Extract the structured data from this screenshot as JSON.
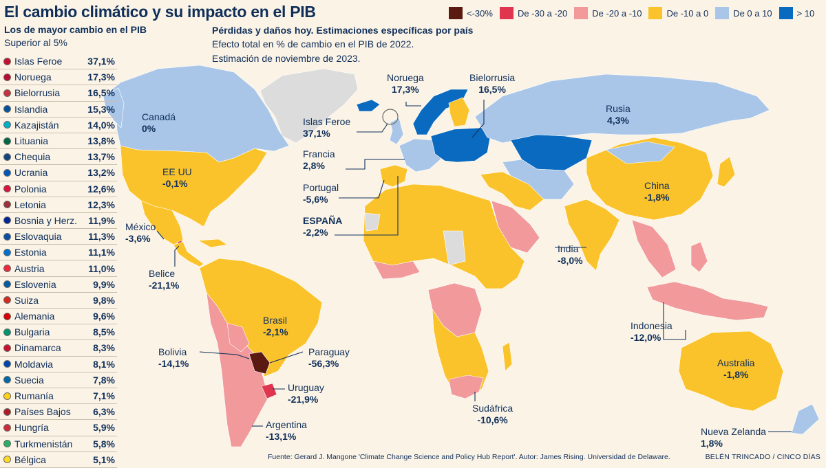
{
  "title": "El cambio climático y su impacto en el PIB",
  "ranking": {
    "title": "Los de mayor cambio en el PIB",
    "subtitle": "Superior al 5%",
    "items": [
      {
        "name": "Islas Feroe",
        "value": "37,1%",
        "flag": "#c8102e"
      },
      {
        "name": "Noruega",
        "value": "17,3%",
        "flag": "#ba0c2f"
      },
      {
        "name": "Bielorrusia",
        "value": "16,5%",
        "flag": "#c8313e"
      },
      {
        "name": "Islandia",
        "value": "15,3%",
        "flag": "#02529c"
      },
      {
        "name": "Kazajistán",
        "value": "14,0%",
        "flag": "#00afca"
      },
      {
        "name": "Lituania",
        "value": "13,8%",
        "flag": "#006a44"
      },
      {
        "name": "Chequia",
        "value": "13,7%",
        "flag": "#11457e"
      },
      {
        "name": "Ucrania",
        "value": "13,2%",
        "flag": "#0057b7"
      },
      {
        "name": "Polonia",
        "value": "12,6%",
        "flag": "#dc143c"
      },
      {
        "name": "Letonia",
        "value": "12,3%",
        "flag": "#9e3039"
      },
      {
        "name": "Bosnia y Herz.",
        "value": "11,9%",
        "flag": "#002395"
      },
      {
        "name": "Eslovaquia",
        "value": "11,3%",
        "flag": "#0b4ea2"
      },
      {
        "name": "Estonia",
        "value": "11,1%",
        "flag": "#0072ce"
      },
      {
        "name": "Austria",
        "value": "11,0%",
        "flag": "#ed2939"
      },
      {
        "name": "Eslovenia",
        "value": "9,9%",
        "flag": "#005da4"
      },
      {
        "name": "Suiza",
        "value": "9,8%",
        "flag": "#d52b1e"
      },
      {
        "name": "Alemania",
        "value": "9,6%",
        "flag": "#dd0000"
      },
      {
        "name": "Bulgaria",
        "value": "8,5%",
        "flag": "#00966e"
      },
      {
        "name": "Dinamarca",
        "value": "8,3%",
        "flag": "#c8102e"
      },
      {
        "name": "Moldavia",
        "value": "8,1%",
        "flag": "#0046ae"
      },
      {
        "name": "Suecia",
        "value": "7,8%",
        "flag": "#006aa7"
      },
      {
        "name": "Rumanía",
        "value": "7,1%",
        "flag": "#fcd116"
      },
      {
        "name": "Países Bajos",
        "value": "6,3%",
        "flag": "#ae1c28"
      },
      {
        "name": "Hungría",
        "value": "5,9%",
        "flag": "#ce2939"
      },
      {
        "name": "Turkmenistán",
        "value": "5,8%",
        "flag": "#28ae66"
      },
      {
        "name": "Bélgica",
        "value": "5,1%",
        "flag": "#fdda24"
      }
    ]
  },
  "subtitle": {
    "title": "Pérdidas y daños hoy. Estimaciones específicas por país",
    "line1": "Efecto total en % de cambio en el PIB de 2022.",
    "line2": "Estimación de noviembre de 2023."
  },
  "legend": [
    {
      "label": "<-30%",
      "color": "#5a1a12"
    },
    {
      "label": "De -30 a -20",
      "color": "#e0354e"
    },
    {
      "label": "De -20 a -10",
      "color": "#f1999b"
    },
    {
      "label": "De -10 a 0",
      "color": "#fbc32b"
    },
    {
      "label": "De 0 a 10",
      "color": "#a9c6e8"
    },
    {
      "label": "> 10",
      "color": "#0a6abf"
    }
  ],
  "colors": {
    "ocean": "#fbf3e6",
    "nodata": "#dcdcdc",
    "text": "#0f2f5a"
  },
  "labels": {
    "canada": {
      "name": "Canadá",
      "value": "0%"
    },
    "eeuu": {
      "name": "EE UU",
      "value": "-0,1%"
    },
    "mexico": {
      "name": "México",
      "value": "-3,6%"
    },
    "belice": {
      "name": "Belice",
      "value": "-21,1%"
    },
    "brasil": {
      "name": "Brasil",
      "value": "-2,1%"
    },
    "bolivia": {
      "name": "Bolivia",
      "value": "-14,1%"
    },
    "paraguay": {
      "name": "Paraguay",
      "value": "-56,3%"
    },
    "uruguay": {
      "name": "Uruguay",
      "value": "-21,9%"
    },
    "argentina": {
      "name": "Argentina",
      "value": "-13,1%"
    },
    "islasferoe": {
      "name": "Islas Feroe",
      "value": "37,1%"
    },
    "francia": {
      "name": "Francia",
      "value": "2,8%"
    },
    "portugal": {
      "name": "Portugal",
      "value": "-5,6%"
    },
    "espana": {
      "name": "ESPAÑA",
      "value": "-2,2%"
    },
    "noruega": {
      "name": "Noruega",
      "value": "17,3%"
    },
    "bielorrusia": {
      "name": "Bielorrusia",
      "value": "16,5%"
    },
    "rusia": {
      "name": "Rusia",
      "value": "4,3%"
    },
    "china": {
      "name": "China",
      "value": "-1,8%"
    },
    "india": {
      "name": "India",
      "value": "-8,0%"
    },
    "indonesia": {
      "name": "Indonesia",
      "value": "-12,0%"
    },
    "australia": {
      "name": "Australia",
      "value": "-1,8%"
    },
    "nuevazelanda": {
      "name": "Nueva Zelanda",
      "value": "1,8%"
    },
    "sudafrica": {
      "name": "Sudáfrica",
      "value": "-10,6%"
    }
  },
  "source": "Fuente: Gerard J. Mangone 'Climate Change Science and Policy Hub Report'. Autor: James Rising. Universidad de Delaware.",
  "credit": "BELÉN TRINCADO / CINCO DÍAS"
}
